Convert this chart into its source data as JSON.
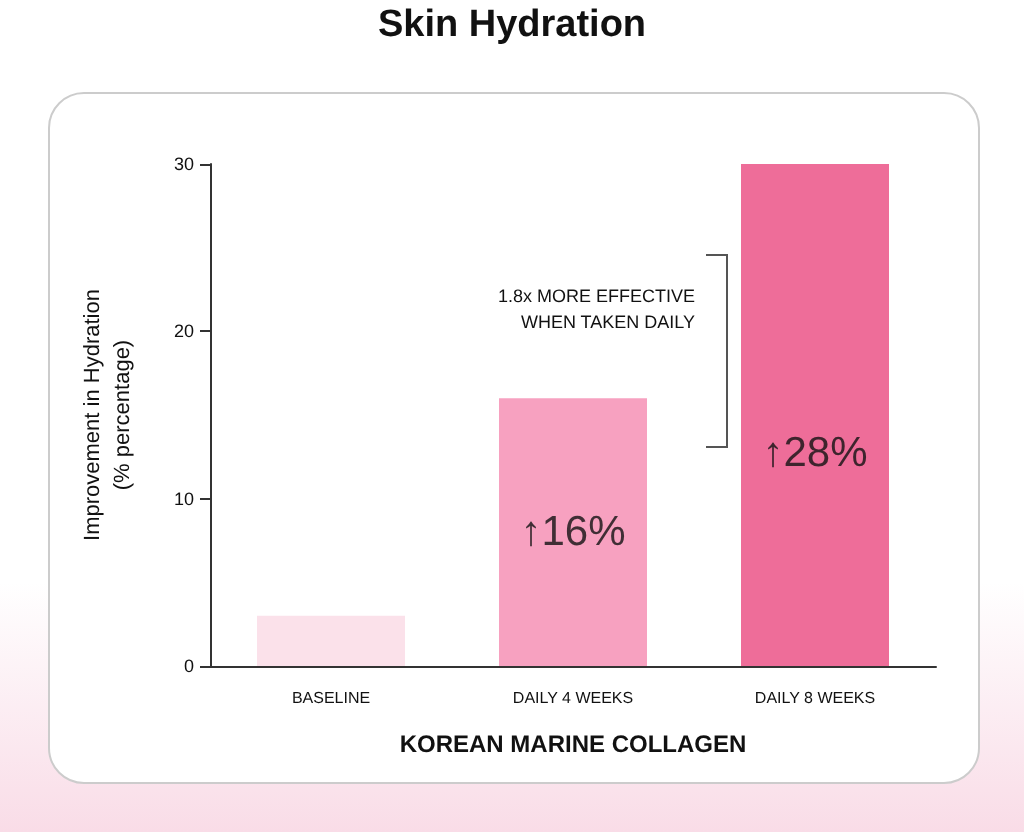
{
  "chart_data": {
    "type": "bar",
    "title": "Skin Hydration",
    "xlabel": "KOREAN MARINE COLLAGEN",
    "ylabel": "Improvement in Hydration\n(% percentage)",
    "categories": [
      "BASELINE",
      "DAILY 4 WEEKS",
      "DAILY 8 WEEKS"
    ],
    "values": [
      3,
      16,
      30
    ],
    "colors": [
      "#fbe1ea",
      "#f7a1c0",
      "#ee6d99"
    ],
    "ylim": [
      0,
      30
    ],
    "yticks": [
      0,
      10,
      20,
      30
    ],
    "grid": false,
    "annotations": [
      "1.8x MORE EFFECTIVE WHEN TAKEN DAILY",
      "↑16%",
      "↑28%"
    ]
  }
}
